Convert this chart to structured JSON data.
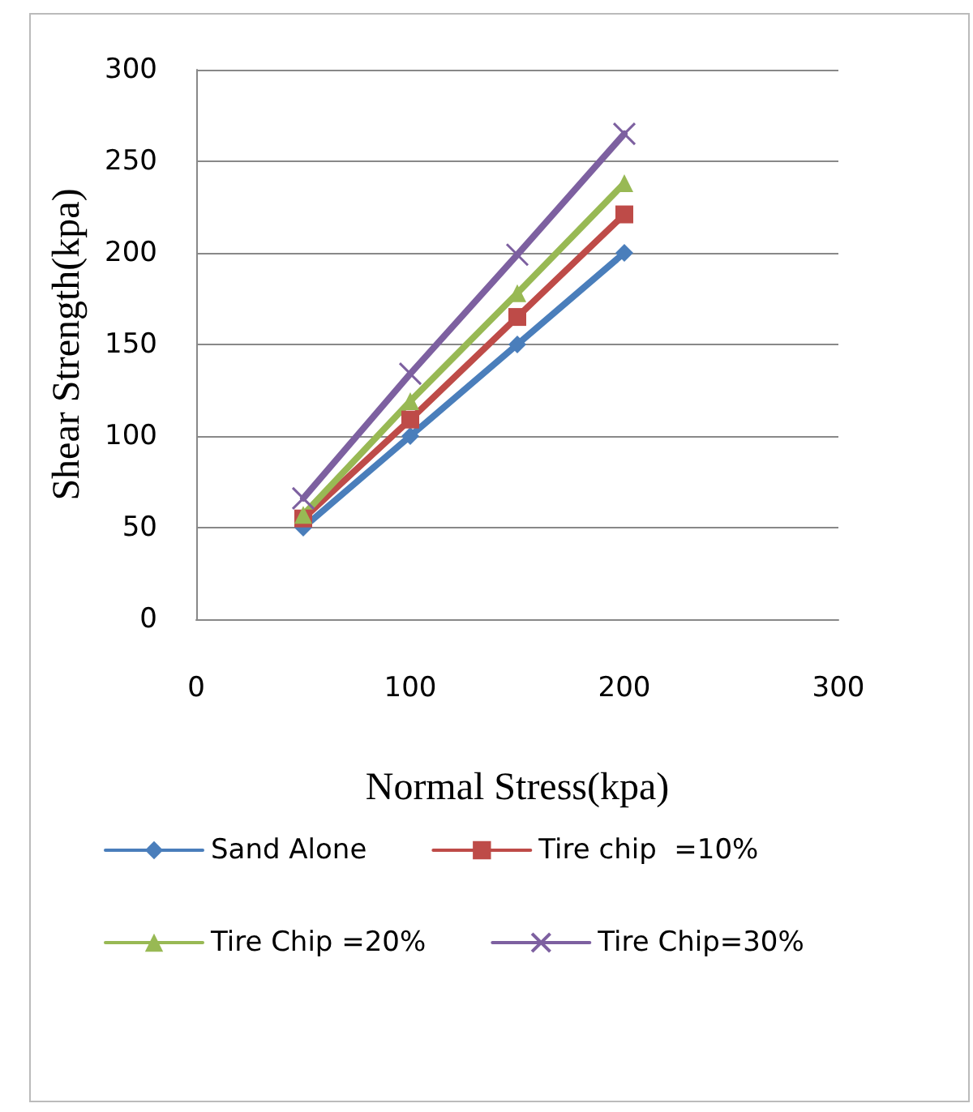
{
  "chart_data": {
    "type": "line",
    "xlabel": "Normal Stress(kpa)",
    "ylabel": "Shear Strength(kpa)",
    "x": [
      50,
      100,
      150,
      200
    ],
    "series": [
      {
        "name": "Sand Alone",
        "color": "#4a7ebb",
        "marker": "diamond",
        "values": [
          50,
          100,
          150,
          200
        ]
      },
      {
        "name": "Tire chip  =10%",
        "color": "#be4b48",
        "marker": "square",
        "values": [
          55,
          109,
          165,
          221
        ]
      },
      {
        "name": "Tire Chip =20%",
        "color": "#98b954",
        "marker": "triangle",
        "values": [
          57,
          119,
          178,
          238
        ]
      },
      {
        "name": "Tire Chip=30%",
        "color": "#7d60a0",
        "marker": "cross",
        "values": [
          66,
          134,
          199,
          265
        ]
      }
    ],
    "xlim": [
      0,
      300
    ],
    "xticks": [
      0,
      100,
      200,
      300
    ],
    "ylim": [
      0,
      300
    ],
    "yticks": [
      0,
      50,
      100,
      150,
      200,
      250,
      300
    ],
    "grid": "y",
    "legend": "bottom",
    "line_style": "solid"
  }
}
